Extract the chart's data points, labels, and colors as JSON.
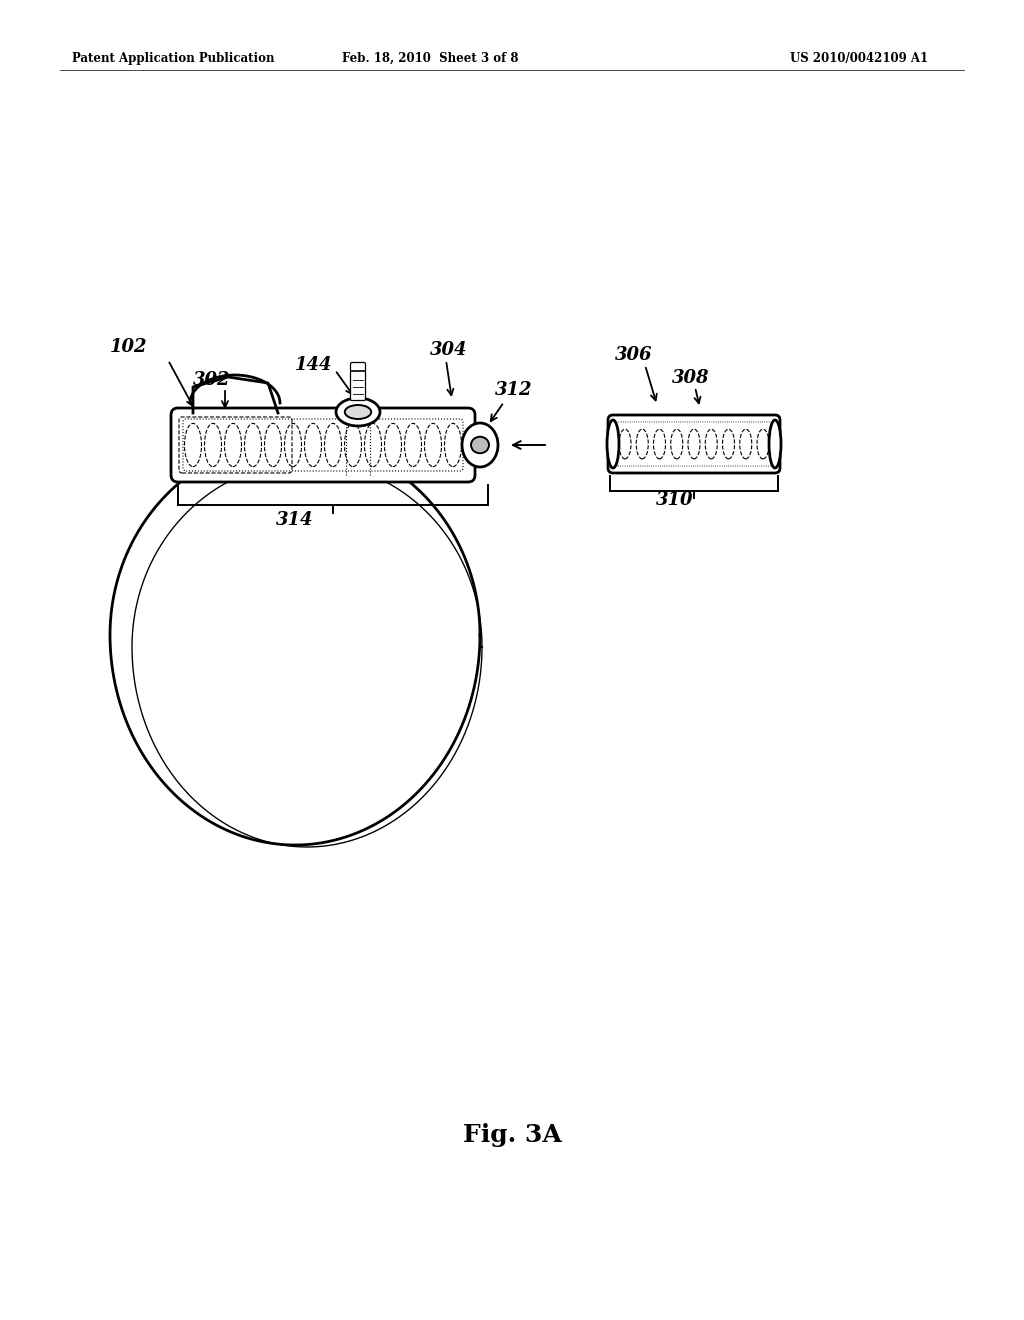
{
  "bg": "#ffffff",
  "header_left": "Patent Application Publication",
  "header_center": "Feb. 18, 2010  Sheet 3 of 8",
  "header_right": "US 2010/0042109 A1",
  "fig_label": "Fig. 3A"
}
